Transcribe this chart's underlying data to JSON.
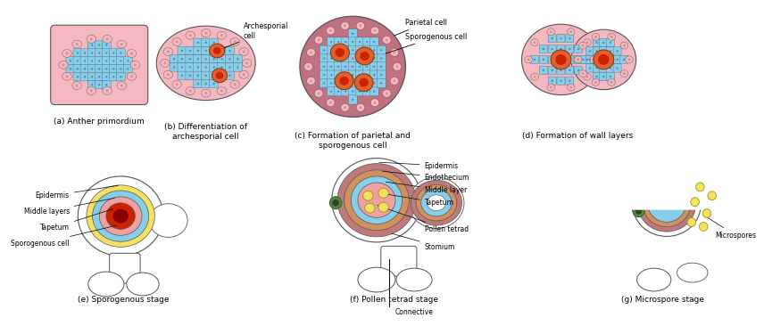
{
  "bg": "#ffffff",
  "pink": "#f5b8c0",
  "blue": "#87ceeb",
  "dpink": "#c07080",
  "yellow": "#f5e060",
  "red": "#cc2200",
  "ce": "#555555",
  "lbl_a": "(a) Anther primordium",
  "lbl_b": "(b) Differentiation of\narchesporial cell",
  "lbl_c": "(c) Formation of parietal and\nsporogenous cell",
  "lbl_d": "(d) Formation of wall layers",
  "lbl_e": "(e) Sporogenous stage",
  "lbl_f": "(f) Pollen tetrad stage",
  "lbl_g": "(g) Microspore stage"
}
